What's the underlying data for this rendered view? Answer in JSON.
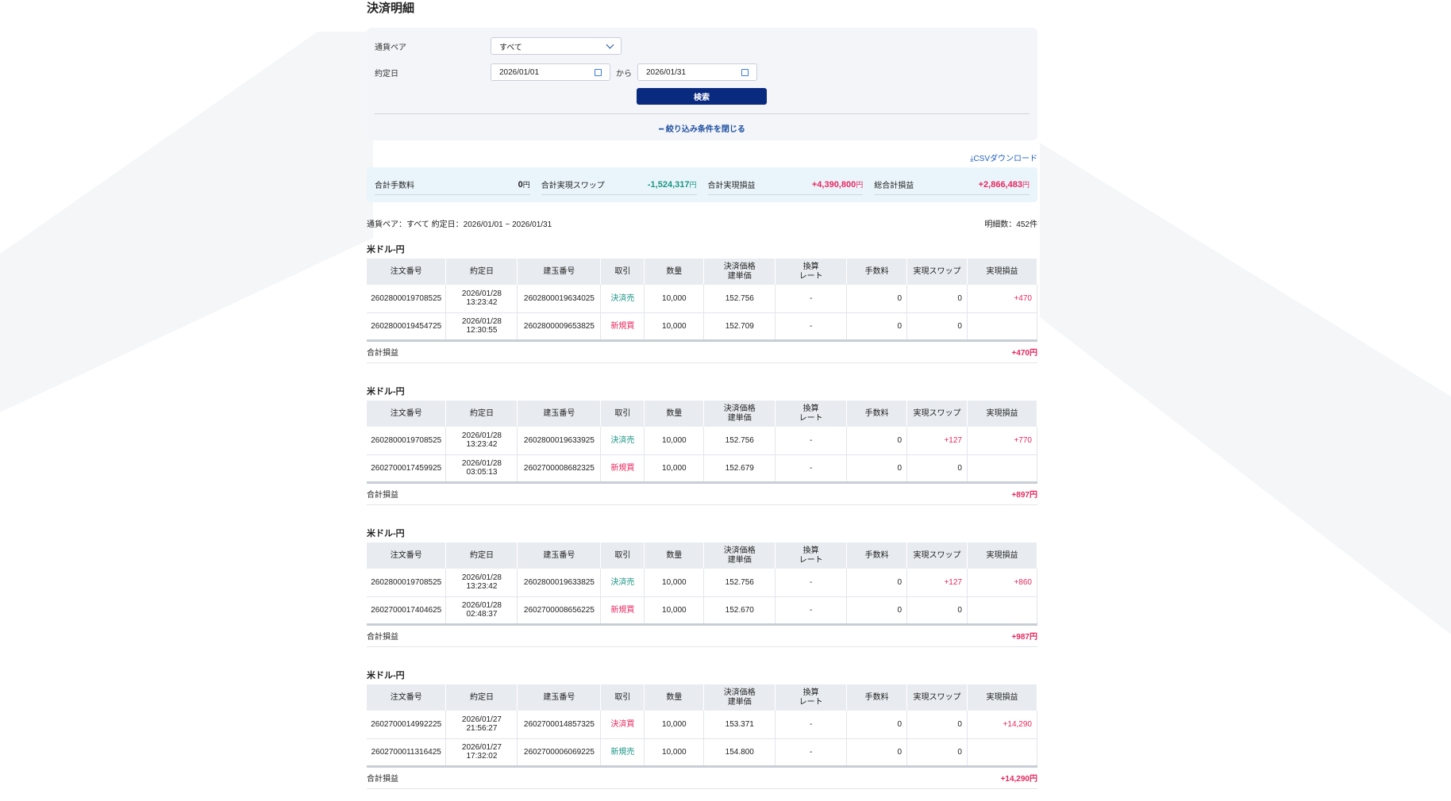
{
  "title": "決済明細",
  "filter": {
    "pair_label": "通貨ペア",
    "pair_value": "すべて",
    "date_label": "約定日",
    "date_from": "2026/01/01",
    "date_sep": "から",
    "date_to": "2026/01/31",
    "search_label": "検索",
    "close_label": "絞り込み条件を閉じる"
  },
  "csv_label": "CSVダウンロード",
  "summary": [
    {
      "label": "合計手数料",
      "value": "0",
      "unit": "円",
      "color": "neutral"
    },
    {
      "label": "合計実現スワップ",
      "value": "-1,524,317",
      "unit": "円",
      "color": "green"
    },
    {
      "label": "合計実現損益",
      "value": "+4,390,800",
      "unit": "円",
      "color": "red"
    },
    {
      "label": "総合計損益",
      "value": "+2,866,483",
      "unit": "円",
      "color": "red"
    }
  ],
  "info": {
    "condition": "通貨ペア：すべて 約定日：2026/01/01 ~ 2026/01/31",
    "count": "明細数：452件"
  },
  "columns": [
    "注文番号",
    "約定日",
    "建玉番号",
    "取引",
    "数量",
    "決済価格\n建単価",
    "換算\nレート",
    "手数料",
    "実現スワップ",
    "実現損益"
  ],
  "total_label": "合計損益",
  "groups": [
    {
      "title": "米ドル-円",
      "total": "+470円",
      "rows": [
        [
          "2602800019708525",
          "2026/01/28\n13:23:42",
          "2602800019634025",
          "決済売",
          "10,000",
          "152.756",
          "-",
          "0",
          "0",
          "+470"
        ],
        [
          "2602800019454725",
          "2026/01/28\n12:30:55",
          "2602800009653825",
          "新規買",
          "10,000",
          "152.709",
          "-",
          "0",
          "0",
          ""
        ]
      ]
    },
    {
      "title": "米ドル-円",
      "total": "+897円",
      "rows": [
        [
          "2602800019708525",
          "2026/01/28\n13:23:42",
          "2602800019633925",
          "決済売",
          "10,000",
          "152.756",
          "-",
          "0",
          "+127",
          "+770"
        ],
        [
          "2602700017459925",
          "2026/01/28\n03:05:13",
          "2602700008682325",
          "新規買",
          "10,000",
          "152.679",
          "-",
          "0",
          "0",
          ""
        ]
      ]
    },
    {
      "title": "米ドル-円",
      "total": "+987円",
      "rows": [
        [
          "2602800019708525",
          "2026/01/28\n13:23:42",
          "2602800019633825",
          "決済売",
          "10,000",
          "152.756",
          "-",
          "0",
          "+127",
          "+860"
        ],
        [
          "2602700017404625",
          "2026/01/28\n02:48:37",
          "2602700008656225",
          "新規買",
          "10,000",
          "152.670",
          "-",
          "0",
          "0",
          ""
        ]
      ]
    },
    {
      "title": "米ドル-円",
      "total": "+14,290円",
      "rows": [
        [
          "2602700014992225",
          "2026/01/27\n21:56:27",
          "2602700014857325",
          "決済買",
          "10,000",
          "153.371",
          "-",
          "0",
          "0",
          "+14,290"
        ],
        [
          "2602700011316425",
          "2026/01/27\n17:32:02",
          "2602700006069225",
          "新規売",
          "10,000",
          "154.800",
          "-",
          "0",
          "0",
          ""
        ]
      ]
    }
  ],
  "colors": {
    "navy": "#0a2a80",
    "green": "#1a9484",
    "red": "#e8265e",
    "link": "#1e5fc0"
  }
}
